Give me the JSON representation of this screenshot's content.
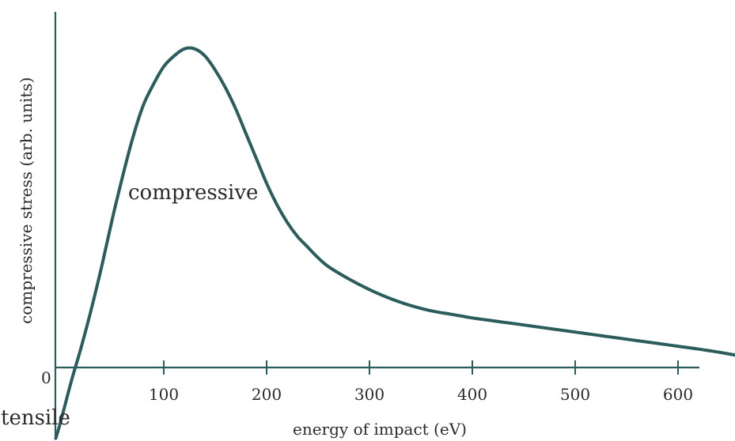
{
  "chart_data": {
    "type": "line",
    "title": "",
    "xlabel": "energy of impact (eV)",
    "ylabel": "compressive stress (arb. units)",
    "x_ticks": [
      "100",
      "200",
      "300",
      "400",
      "500",
      "600"
    ],
    "y_ticks": [
      "0"
    ],
    "annotations": {
      "compressive": "compressive",
      "tensile": "tensile"
    },
    "xlim": [
      -20,
      660
    ],
    "ylim": [
      -0.2,
      1.0
    ],
    "grid": false,
    "series": [
      {
        "x": [
          -5,
          0,
          10,
          20,
          30,
          40,
          50,
          60,
          70,
          80,
          90,
          100,
          110,
          120,
          130,
          140,
          150,
          160,
          170,
          180,
          190,
          200,
          210,
          220,
          230,
          240,
          250,
          260,
          280,
          300,
          320,
          340,
          360,
          380,
          400,
          420,
          440,
          460,
          480,
          500,
          520,
          540,
          560,
          580,
          600,
          620,
          640,
          660
        ],
        "y": [
          -0.2,
          -0.15,
          -0.04,
          0.06,
          0.17,
          0.29,
          0.42,
          0.54,
          0.65,
          0.74,
          0.8,
          0.85,
          0.88,
          0.9,
          0.9,
          0.88,
          0.84,
          0.79,
          0.73,
          0.66,
          0.59,
          0.52,
          0.46,
          0.41,
          0.37,
          0.34,
          0.31,
          0.285,
          0.25,
          0.22,
          0.195,
          0.175,
          0.16,
          0.15,
          0.14,
          0.132,
          0.124,
          0.116,
          0.108,
          0.1,
          0.092,
          0.084,
          0.076,
          0.068,
          0.06,
          0.052,
          0.043,
          0.033
        ]
      }
    ]
  }
}
